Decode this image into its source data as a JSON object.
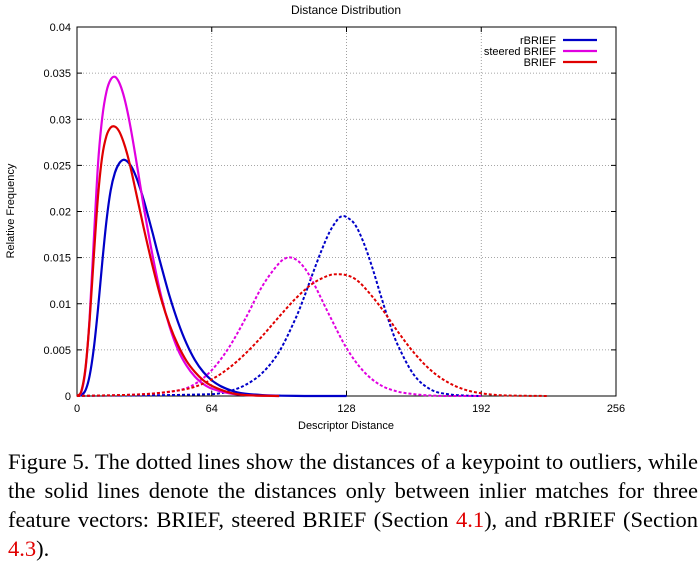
{
  "chart_data": {
    "type": "line",
    "title": "Distance Distribution",
    "xlabel": "Descriptor Distance",
    "ylabel": "Relative Frequency",
    "xlim": [
      0,
      256
    ],
    "ylim": [
      0,
      0.04
    ],
    "xticks": [
      0,
      64,
      128,
      192,
      256
    ],
    "yticks": [
      0,
      0.005,
      0.01,
      0.015,
      0.02,
      0.025,
      0.03,
      0.035,
      0.04
    ],
    "ytick_labels": [
      "0",
      "0.005",
      "0.01",
      "0.015",
      "0.02",
      "0.025",
      "0.03",
      "0.035",
      "0.04"
    ],
    "grid": true,
    "legend_position": "top-right",
    "series": [
      {
        "name": "rBRIEF",
        "color": "#0000c8",
        "style": "solid",
        "x": [
          0,
          2,
          4,
          6,
          8,
          10,
          12,
          14,
          16,
          18,
          20,
          22,
          24,
          26,
          28,
          30,
          32,
          34,
          36,
          38,
          40,
          44,
          48,
          52,
          56,
          60,
          64,
          68,
          72,
          76,
          80,
          88,
          96,
          104,
          112,
          128
        ],
        "y": [
          0,
          0.0001,
          0.0006,
          0.0022,
          0.0052,
          0.0095,
          0.0145,
          0.019,
          0.0223,
          0.0242,
          0.0252,
          0.0256,
          0.0254,
          0.0248,
          0.0238,
          0.0225,
          0.021,
          0.0193,
          0.0176,
          0.0158,
          0.0141,
          0.0108,
          0.008,
          0.0057,
          0.0039,
          0.0026,
          0.0017,
          0.0011,
          0.0007,
          0.0004,
          0.00025,
          0.0001,
          4e-05,
          1e-05,
          0,
          0
        ]
      },
      {
        "name": "rBRIEF outliers",
        "color": "#0000c8",
        "style": "dotted",
        "x": [
          0,
          64,
          72,
          80,
          88,
          96,
          104,
          108,
          112,
          116,
          120,
          124,
          126,
          128,
          132,
          136,
          140,
          144,
          148,
          152,
          160,
          168,
          176,
          184,
          192
        ],
        "y": [
          0,
          0.0002,
          0.0005,
          0.0012,
          0.0025,
          0.0048,
          0.0085,
          0.0108,
          0.0133,
          0.0157,
          0.0178,
          0.0192,
          0.0195,
          0.0194,
          0.0186,
          0.0167,
          0.0141,
          0.0111,
          0.0082,
          0.0057,
          0.0023,
          0.0007,
          0.0002,
          5e-05,
          0
        ]
      },
      {
        "name": "steered BRIEF",
        "color": "#e000e0",
        "style": "solid",
        "x": [
          0,
          2,
          4,
          6,
          8,
          10,
          12,
          14,
          16,
          18,
          20,
          22,
          24,
          26,
          28,
          30,
          32,
          36,
          40,
          44,
          48,
          52,
          56,
          60,
          64,
          72,
          80,
          96
        ],
        "y": [
          0,
          0.0004,
          0.0028,
          0.0085,
          0.017,
          0.0252,
          0.0302,
          0.033,
          0.0343,
          0.0346,
          0.034,
          0.0327,
          0.0308,
          0.0284,
          0.0257,
          0.0229,
          0.0201,
          0.0151,
          0.0108,
          0.0075,
          0.005,
          0.0033,
          0.0021,
          0.0013,
          0.0008,
          0.0003,
          0.0001,
          0
        ]
      },
      {
        "name": "steered BRIEF outliers",
        "color": "#e000e0",
        "style": "dotted",
        "x": [
          0,
          32,
          48,
          56,
          64,
          72,
          80,
          88,
          96,
          100,
          104,
          108,
          112,
          120,
          128,
          136,
          144,
          152,
          160,
          168,
          176,
          192
        ],
        "y": [
          0,
          0.0002,
          0.0006,
          0.0013,
          0.0028,
          0.0052,
          0.0084,
          0.0119,
          0.0144,
          0.015,
          0.0148,
          0.0139,
          0.0124,
          0.0087,
          0.0052,
          0.0027,
          0.0012,
          0.0005,
          0.0002,
          5e-05,
          0,
          0
        ]
      },
      {
        "name": "BRIEF",
        "color": "#e00000",
        "style": "solid",
        "x": [
          0,
          2,
          4,
          6,
          8,
          10,
          12,
          14,
          16,
          18,
          20,
          22,
          24,
          26,
          28,
          30,
          32,
          36,
          40,
          44,
          48,
          52,
          56,
          60,
          64,
          72,
          80,
          96
        ],
        "y": [
          0,
          0.0005,
          0.003,
          0.0082,
          0.0152,
          0.0217,
          0.026,
          0.0282,
          0.0291,
          0.0292,
          0.0287,
          0.0276,
          0.0261,
          0.0242,
          0.0221,
          0.02,
          0.0179,
          0.014,
          0.0105,
          0.0077,
          0.0055,
          0.0038,
          0.0026,
          0.0017,
          0.0011,
          0.0004,
          0.0001,
          0
        ]
      },
      {
        "name": "BRIEF outliers",
        "color": "#e00000",
        "style": "dotted",
        "x": [
          0,
          32,
          48,
          56,
          64,
          72,
          80,
          88,
          96,
          104,
          112,
          120,
          124,
          128,
          132,
          136,
          144,
          152,
          160,
          168,
          176,
          184,
          192,
          200,
          208,
          224
        ],
        "y": [
          0,
          0.0002,
          0.0006,
          0.001,
          0.0018,
          0.003,
          0.0046,
          0.0065,
          0.0086,
          0.0106,
          0.0122,
          0.0131,
          0.0132,
          0.0131,
          0.0127,
          0.0119,
          0.0097,
          0.0071,
          0.0047,
          0.0028,
          0.0015,
          0.0007,
          0.0003,
          0.0001,
          4e-05,
          0
        ]
      }
    ]
  },
  "legend_entries": [
    {
      "label": "rBRIEF",
      "color": "#0000c8"
    },
    {
      "label": "steered BRIEF",
      "color": "#e000e0"
    },
    {
      "label": "BRIEF",
      "color": "#e00000"
    }
  ],
  "caption": {
    "prefix": "Figure 5. The dotted lines show the distances of a keypoint to outliers, while the solid lines denote the distances only between inlier matches for three feature vectors: BRIEF, steered BRIEF (Section ",
    "ref1": "4.1",
    "middle": "), and rBRIEF (Section ",
    "ref2": "4.3",
    "suffix": ")."
  }
}
